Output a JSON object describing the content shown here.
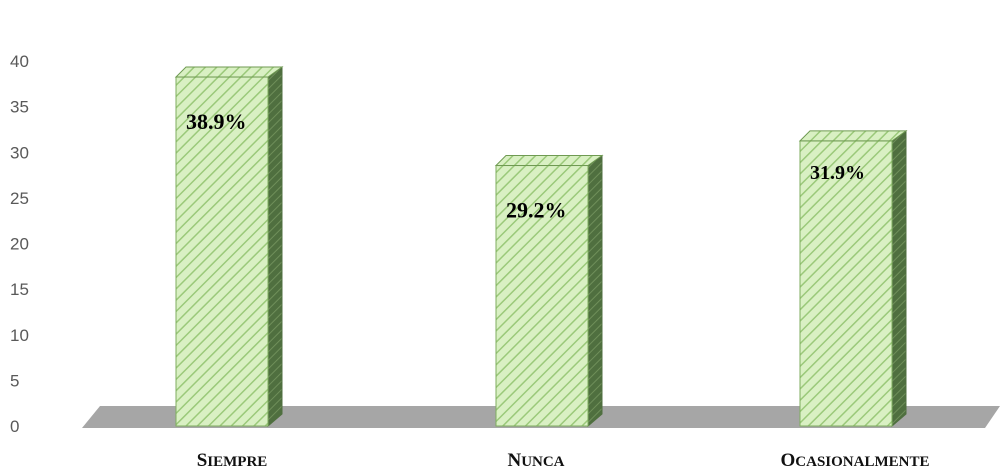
{
  "chart_data": {
    "type": "bar",
    "title": "",
    "xlabel": "",
    "ylabel": "",
    "categories": [
      "Siempre",
      "Nunca",
      "Ocasionalmente"
    ],
    "values": [
      38.9,
      29.2,
      31.9
    ],
    "data_labels": [
      "38.9%",
      "29.2%",
      "31.9%"
    ],
    "ylim": [
      0,
      40
    ],
    "yticks": [
      0,
      5,
      10,
      15,
      20,
      25,
      30,
      35,
      40
    ],
    "grid": false,
    "legend": "none",
    "style": "3d-column",
    "colors": {
      "bar_fill": "#d9f0c3",
      "bar_hatch": "#9bc97a",
      "bar_side": "#4f6f3f",
      "floor": "#a6a6a6",
      "tick_text": "#595959"
    }
  }
}
